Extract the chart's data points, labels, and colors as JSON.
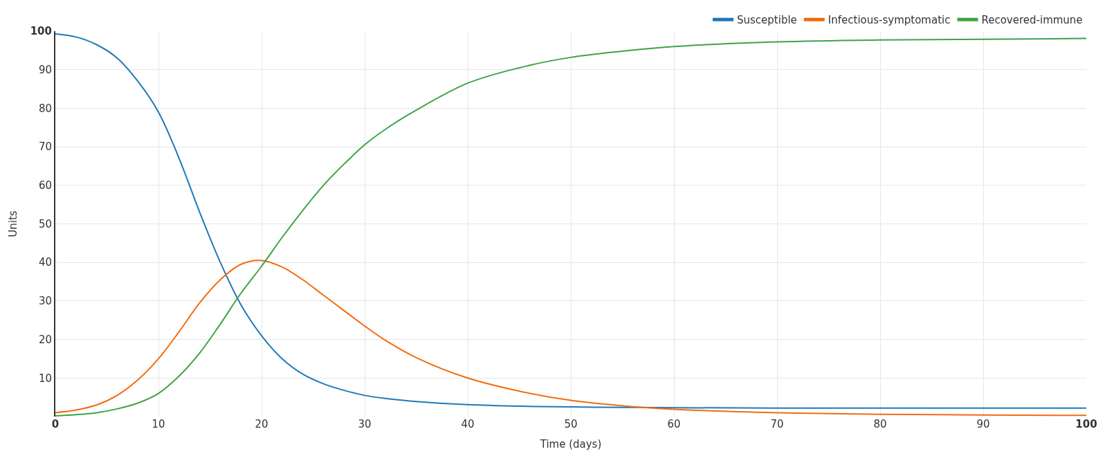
{
  "chart_data": {
    "type": "line",
    "xlabel": "Time (days)",
    "ylabel": "Units",
    "xlim": [
      0,
      100
    ],
    "xticks": [
      0,
      10,
      20,
      30,
      40,
      50,
      60,
      70,
      80,
      90,
      100
    ],
    "ylim": [
      0,
      100
    ],
    "yticks": [
      10,
      20,
      30,
      40,
      50,
      60,
      70,
      80,
      90,
      100
    ],
    "grid": true,
    "legend": "top right",
    "marker": "none",
    "line_style": "solid",
    "x": [
      0,
      2,
      4,
      6,
      8,
      10,
      12,
      14,
      16,
      18,
      20,
      22,
      24,
      26,
      28,
      30,
      32,
      35,
      40,
      45,
      50,
      55,
      60,
      70,
      80,
      90,
      100
    ],
    "series": [
      {
        "name": "Susceptible",
        "color": "#1f78b8",
        "values": [
          99.3,
          98.5,
          96.5,
          93,
          87,
          79,
          67,
          53,
          40,
          29,
          21,
          15,
          11,
          8.5,
          6.8,
          5.5,
          4.7,
          3.9,
          3.1,
          2.7,
          2.5,
          2.4,
          2.3,
          2.2,
          2.2,
          2.2,
          2.2
        ]
      },
      {
        "name": "Infectious-symptomatic",
        "color": "#f26b0f",
        "values": [
          1,
          1.7,
          3,
          5.5,
          9.5,
          15,
          22,
          29.5,
          35.5,
          39.5,
          40.5,
          38.8,
          35.5,
          31.5,
          27.5,
          23.5,
          19.8,
          15.3,
          10,
          6.6,
          4.2,
          2.8,
          1.9,
          1,
          0.6,
          0.4,
          0.3
        ]
      },
      {
        "name": "Recovered-immune",
        "color": "#3da346",
        "values": [
          0.2,
          0.5,
          1,
          2,
          3.5,
          6,
          10.5,
          16.5,
          24,
          32,
          39,
          46.5,
          53.5,
          60,
          65.5,
          70.5,
          74.5,
          79.5,
          86.5,
          90.5,
          93.2,
          94.8,
          96,
          97.2,
          97.7,
          97.9,
          98.1
        ]
      }
    ]
  }
}
